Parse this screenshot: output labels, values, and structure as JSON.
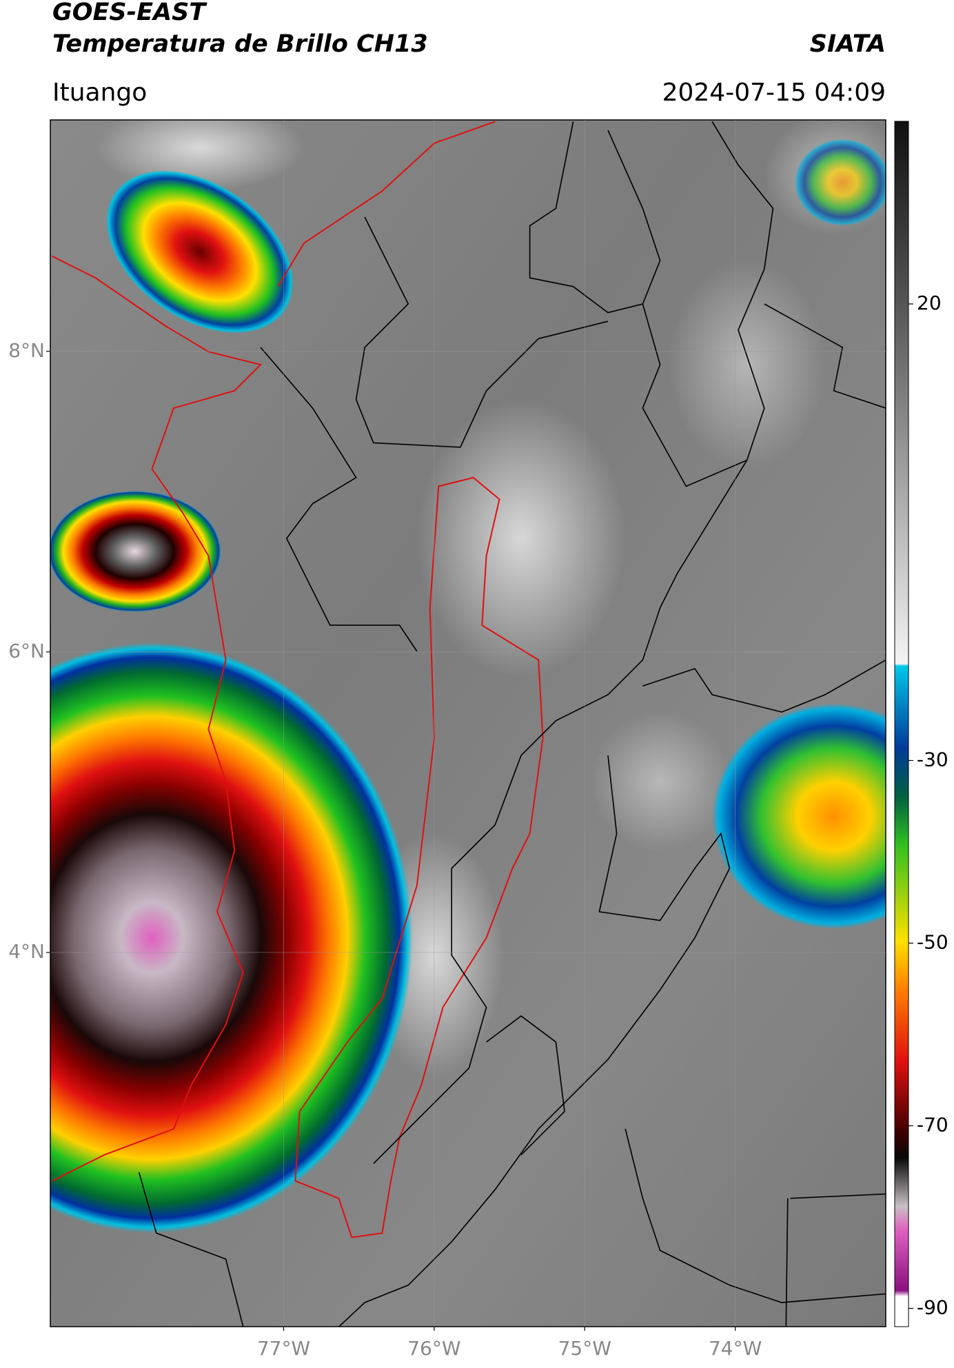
{
  "header": {
    "title_line1": "GOES-EAST",
    "title_line2": "Temperatura de Brillo CH13",
    "source": "SIATA",
    "location": "Ituango",
    "timestamp": "2024-07-15 04:09"
  },
  "map": {
    "lonlim": [
      -78.55,
      -73.0
    ],
    "latlim": [
      1.51,
      9.54
    ],
    "lat_ticks": [
      {
        "value": 8,
        "label": "8°N"
      },
      {
        "value": 6,
        "label": "6°N"
      },
      {
        "value": 4,
        "label": "4°N"
      }
    ],
    "lon_ticks": [
      {
        "value": -77,
        "label": "77°W"
      },
      {
        "value": -76,
        "label": "76°W"
      },
      {
        "value": -75,
        "label": "75°W"
      },
      {
        "value": -74,
        "label": "74°W"
      }
    ],
    "grid": true
  },
  "colorbar": {
    "lim": [
      -92,
      40
    ],
    "ticks": [
      20,
      -30,
      -50,
      -70,
      -90
    ]
  }
}
